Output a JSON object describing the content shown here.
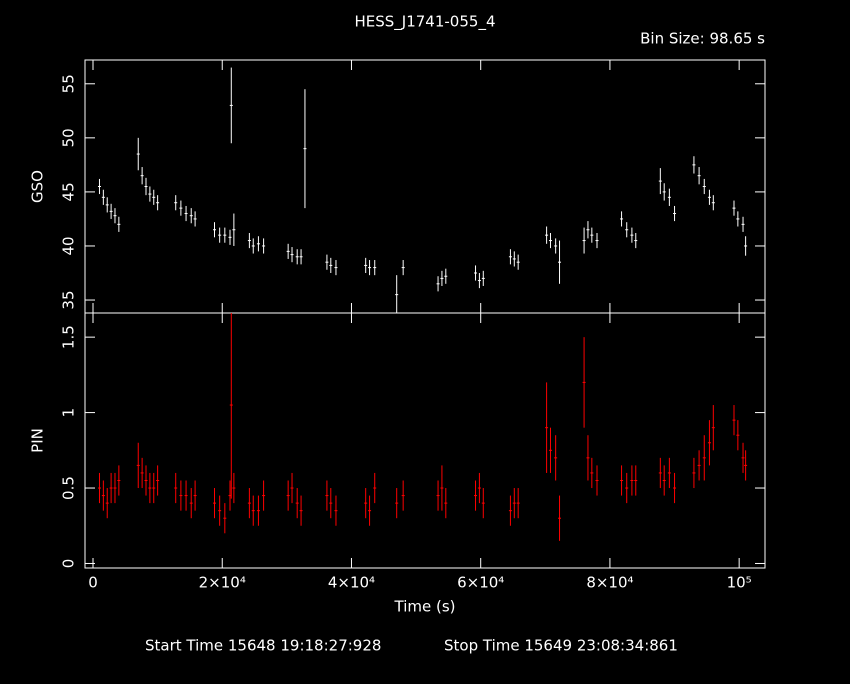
{
  "title": "HESS_J1741-055_4",
  "bin_size": "Bin Size: 98.65 s",
  "start_time": "Start Time 15648 19:18:27:928",
  "stop_time": "Stop Time 15649 23:08:34:861",
  "chart_data": [
    {
      "type": "errorbar",
      "ylabel": "GSO",
      "color": "#ffffff",
      "x": [
        1000,
        1600,
        2200,
        2800,
        3400,
        4000,
        7000,
        7600,
        8200,
        8800,
        9400,
        10000,
        12800,
        13600,
        14400,
        15200,
        15800,
        18800,
        19600,
        20400,
        21200,
        21400,
        21800,
        24200,
        24800,
        25600,
        26400,
        30200,
        30800,
        31600,
        32200,
        32800,
        36200,
        36800,
        37600,
        42200,
        42800,
        43600,
        47000,
        48000,
        53400,
        54000,
        54600,
        59200,
        59800,
        60400,
        64600,
        65200,
        65800,
        70200,
        70800,
        71600,
        72200,
        76000,
        76600,
        77200,
        78000,
        81800,
        82600,
        83400,
        84000,
        87800,
        88400,
        89200,
        90000,
        93000,
        93800,
        94600,
        95400,
        96000,
        99200,
        99800,
        100600,
        101000
      ],
      "values": [
        45.5,
        44.5,
        43.8,
        43.2,
        42.8,
        42.0,
        48.5,
        46.5,
        45.5,
        44.8,
        44.5,
        44.0,
        44.0,
        43.5,
        43.0,
        42.8,
        42.5,
        41.5,
        41.0,
        41.0,
        40.8,
        53.0,
        41.5,
        40.5,
        40.0,
        40.2,
        40.0,
        39.5,
        39.2,
        39.0,
        39.0,
        49.0,
        38.5,
        38.2,
        38.0,
        38.2,
        38.0,
        38.0,
        35.5,
        38.0,
        36.5,
        37.0,
        37.2,
        37.5,
        36.8,
        37.0,
        39.0,
        38.8,
        38.5,
        41.0,
        40.5,
        40.0,
        38.5,
        40.5,
        41.5,
        41.0,
        40.5,
        42.5,
        41.5,
        41.0,
        40.5,
        46.0,
        45.0,
        44.5,
        43.0,
        47.5,
        46.5,
        45.5,
        44.5,
        44.0,
        43.5,
        42.5,
        42.0,
        40.0
      ],
      "errors": [
        0.7,
        0.7,
        0.7,
        0.7,
        0.7,
        0.7,
        1.5,
        0.8,
        0.8,
        0.7,
        0.7,
        0.7,
        0.7,
        0.7,
        0.7,
        0.7,
        0.7,
        0.7,
        0.7,
        0.7,
        0.7,
        3.5,
        1.5,
        0.7,
        0.7,
        0.7,
        0.7,
        0.7,
        0.7,
        0.7,
        0.7,
        5.5,
        0.7,
        0.7,
        0.7,
        0.7,
        0.7,
        0.7,
        1.8,
        0.7,
        0.7,
        0.7,
        0.7,
        0.7,
        0.7,
        0.7,
        0.7,
        0.7,
        0.7,
        0.8,
        0.7,
        0.7,
        2.0,
        1.2,
        0.8,
        0.7,
        0.7,
        0.7,
        0.7,
        0.7,
        0.7,
        1.2,
        0.8,
        0.8,
        0.7,
        0.8,
        0.8,
        0.7,
        0.7,
        0.7,
        0.7,
        0.7,
        0.7,
        0.9
      ],
      "ylim": [
        33.8,
        57.2
      ],
      "yticks": [
        35,
        40,
        45,
        50,
        55
      ]
    },
    {
      "type": "errorbar",
      "ylabel": "PIN",
      "xlabel": "Time (s)",
      "color": "#ff0000",
      "x": [
        1000,
        1600,
        2200,
        2800,
        3400,
        4000,
        7000,
        7600,
        8200,
        8800,
        9400,
        10000,
        12800,
        13600,
        14400,
        15200,
        15800,
        18800,
        19600,
        20400,
        21200,
        21400,
        21800,
        24200,
        24800,
        25600,
        26400,
        30200,
        30800,
        31600,
        32200,
        36200,
        36800,
        37600,
        42200,
        42800,
        43600,
        47000,
        48000,
        53400,
        54000,
        54600,
        59200,
        59800,
        60400,
        64600,
        65200,
        65800,
        70200,
        70800,
        71600,
        72200,
        76000,
        76600,
        77200,
        78000,
        81800,
        82600,
        83400,
        84000,
        87800,
        88400,
        89200,
        90000,
        93000,
        93800,
        94600,
        95400,
        96000,
        99200,
        99800,
        100600,
        101000
      ],
      "values": [
        0.5,
        0.45,
        0.4,
        0.5,
        0.5,
        0.55,
        0.65,
        0.6,
        0.55,
        0.5,
        0.5,
        0.55,
        0.5,
        0.45,
        0.45,
        0.4,
        0.45,
        0.4,
        0.35,
        0.3,
        0.45,
        1.05,
        0.5,
        0.4,
        0.35,
        0.35,
        0.45,
        0.45,
        0.5,
        0.4,
        0.35,
        0.45,
        0.4,
        0.35,
        0.4,
        0.35,
        0.5,
        0.4,
        0.45,
        0.45,
        0.5,
        0.4,
        0.45,
        0.5,
        0.4,
        0.35,
        0.4,
        0.4,
        0.9,
        0.75,
        0.7,
        0.3,
        1.2,
        0.7,
        0.6,
        0.55,
        0.55,
        0.5,
        0.55,
        0.55,
        0.6,
        0.55,
        0.6,
        0.5,
        0.6,
        0.65,
        0.7,
        0.8,
        0.9,
        0.95,
        0.85,
        0.7,
        0.65
      ],
      "errors": [
        0.1,
        0.1,
        0.1,
        0.1,
        0.1,
        0.1,
        0.15,
        0.1,
        0.1,
        0.1,
        0.1,
        0.1,
        0.1,
        0.1,
        0.1,
        0.1,
        0.1,
        0.1,
        0.1,
        0.1,
        0.1,
        0.62,
        0.1,
        0.1,
        0.1,
        0.1,
        0.1,
        0.1,
        0.1,
        0.1,
        0.1,
        0.1,
        0.1,
        0.1,
        0.1,
        0.1,
        0.1,
        0.1,
        0.1,
        0.1,
        0.15,
        0.1,
        0.1,
        0.1,
        0.1,
        0.1,
        0.1,
        0.1,
        0.3,
        0.15,
        0.15,
        0.15,
        0.3,
        0.15,
        0.1,
        0.1,
        0.1,
        0.1,
        0.1,
        0.1,
        0.1,
        0.1,
        0.1,
        0.1,
        0.1,
        0.1,
        0.15,
        0.15,
        0.15,
        0.1,
        0.1,
        0.1,
        0.1
      ],
      "ylim": [
        -0.03,
        1.66
      ],
      "yticks": [
        0,
        0.5,
        1,
        1.5
      ],
      "xlim": [
        -1240,
        104000
      ],
      "xticks": [
        0,
        {
          "value": 20000,
          "label": "2×10⁴"
        },
        {
          "value": 40000,
          "label": "4×10⁴"
        },
        {
          "value": 60000,
          "label": "6×10⁴"
        },
        {
          "value": 80000,
          "label": "8×10⁴"
        },
        {
          "value": 100000,
          "label": "10⁵"
        }
      ]
    }
  ]
}
